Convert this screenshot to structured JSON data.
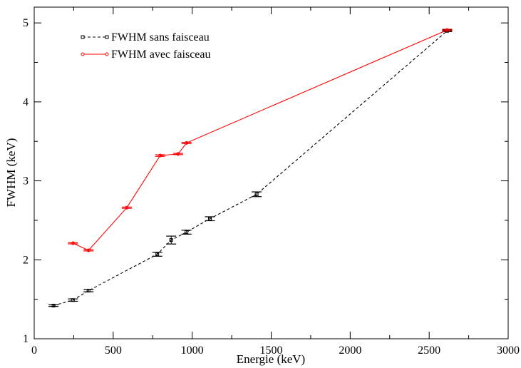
{
  "chart_data": {
    "type": "line",
    "title": "",
    "xlabel": "Energie (keV)",
    "ylabel": "FWHM (keV)",
    "xlim": [
      0,
      3000
    ],
    "ylim": [
      1,
      5.2
    ],
    "x_ticks": [
      "0",
      "500",
      "1000",
      "1500",
      "2000",
      "2500",
      "3000"
    ],
    "y_ticks": [
      "1",
      "2",
      "3",
      "4",
      "5"
    ],
    "grid": false,
    "legend_position": "top-left",
    "series": [
      {
        "name": "FWHM sans faisceau",
        "color": "#000000",
        "line_style": "dashed",
        "marker": "square",
        "x": [
          122,
          245,
          344,
          779,
          867,
          964,
          1112,
          1408,
          2614
        ],
        "y": [
          1.42,
          1.49,
          1.61,
          2.07,
          2.25,
          2.35,
          2.52,
          2.83,
          4.9
        ],
        "err": [
          0.01,
          0.015,
          0.015,
          0.025,
          0.05,
          0.025,
          0.025,
          0.03,
          0.01
        ]
      },
      {
        "name": "FWHM avec faisceau",
        "color": "#ff0000",
        "line_style": "solid",
        "marker": "circle",
        "x": [
          245,
          344,
          586,
          797,
          911,
          964,
          2614
        ],
        "y": [
          2.21,
          2.12,
          2.66,
          3.32,
          3.34,
          3.48,
          4.91
        ],
        "err": [
          0.008,
          0.008,
          0.008,
          0.01,
          0.008,
          0.008,
          0.01
        ]
      }
    ]
  }
}
